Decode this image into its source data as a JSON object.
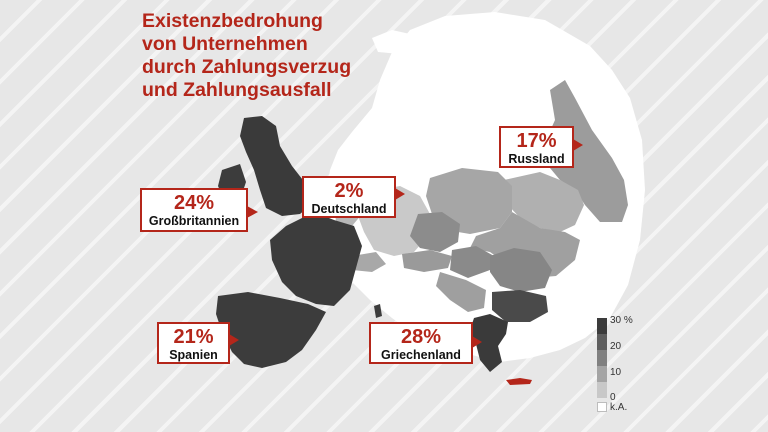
{
  "title": "Existenzbedrohung\nvon Unternehmen\ndurch Zahlungsverzug\nund Zahlungsausfall",
  "callouts": {
    "russland": {
      "percent": "17%",
      "country": "Russland"
    },
    "grossbritannien": {
      "percent": "24%",
      "country": "Großbritannien"
    },
    "deutschland": {
      "percent": "2%",
      "country": "Deutschland"
    },
    "spanien": {
      "percent": "21%",
      "country": "Spanien"
    },
    "griechenland": {
      "percent": "28%",
      "country": "Griechenland"
    }
  },
  "legend": {
    "labels": [
      "30 %",
      "20",
      "10",
      "0",
      "k.A."
    ],
    "colors": [
      "#3c3c3c",
      "#5e5e5e",
      "#808080",
      "#a4a4a4",
      "#c8c8c8",
      "#ffffff"
    ]
  },
  "colors": {
    "accent": "#b4261a",
    "background": "#e7e7e7",
    "no_data_land": "#ffffff"
  }
}
